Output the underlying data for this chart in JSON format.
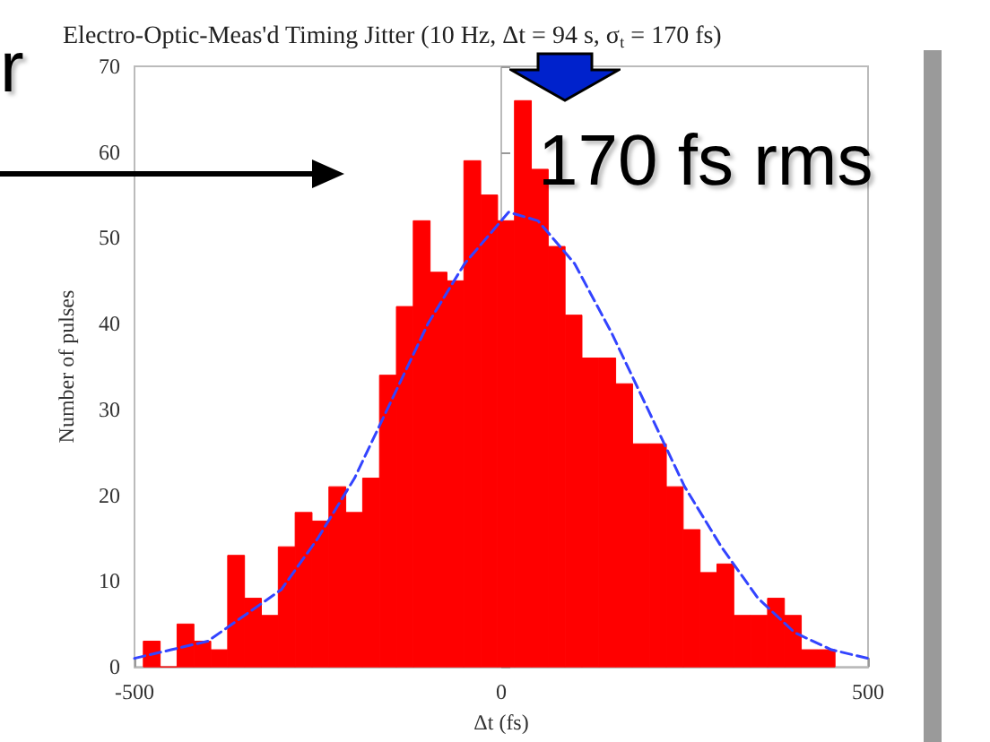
{
  "chart_data": {
    "type": "histogram",
    "title": "Electro-Optic-Meas'd Timing Jitter (10 Hz, Δt = 94 s, σ$_{t}$ = 170 fs)",
    "xlabel": "Δt (fs)",
    "ylabel": "Number of pulses",
    "bins": [
      -488,
      -465,
      -442,
      -419,
      -396,
      -373,
      -350,
      -327,
      -304,
      -281,
      -258,
      -235,
      -212,
      -189,
      -166,
      -143,
      -120,
      -97,
      -74,
      -51,
      -28,
      -5,
      18,
      41,
      64,
      87,
      110,
      133,
      156,
      179,
      202,
      225,
      248,
      271,
      294,
      317,
      340,
      363,
      386,
      409,
      432,
      455
    ],
    "values": [
      3,
      0,
      5,
      3,
      2,
      13,
      8,
      6,
      14,
      18,
      17,
      21,
      18,
      22,
      34,
      42,
      52,
      46,
      45,
      59,
      55,
      52,
      66,
      58,
      49,
      41,
      36,
      36,
      33,
      26,
      26,
      21,
      16,
      11,
      12,
      6,
      6,
      8,
      6,
      2,
      2
    ],
    "color": "#ff0000",
    "series": [
      {
        "type": "line",
        "color": "#3344ff",
        "line_style": "dashed",
        "marker": "none",
        "x": [
          -500,
          -450,
          -400,
          -350,
          -300,
          -250,
          -200,
          -150,
          -100,
          -50,
          0,
          10,
          50,
          100,
          150,
          200,
          250,
          300,
          350,
          400,
          450,
          500
        ],
        "values": [
          1,
          2,
          3,
          6,
          9,
          15,
          22,
          31,
          40,
          47,
          52,
          53,
          52,
          47,
          39,
          30,
          21,
          14,
          8,
          4,
          2,
          1
        ]
      }
    ],
    "xlim": [
      -500,
      500
    ],
    "xticks": [
      -500,
      0,
      500
    ],
    "ylim": [
      0,
      70
    ],
    "yticks": [
      0,
      10,
      20,
      30,
      40,
      50,
      60,
      70
    ],
    "annotations": [
      "170 fs rms",
      "r"
    ]
  }
}
